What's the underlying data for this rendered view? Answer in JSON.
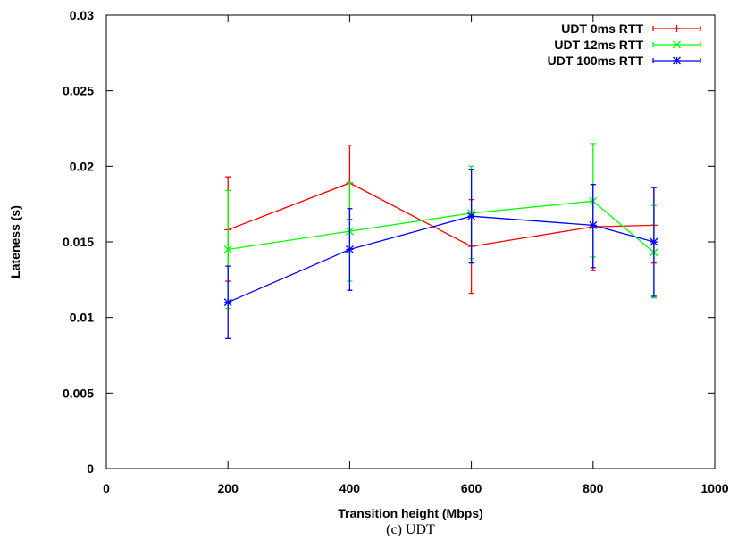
{
  "chart_data": {
    "type": "line",
    "xlabel": "Transition height (Mbps)",
    "ylabel": "Lateness (s)",
    "caption": "(c)  UDT",
    "xlim": [
      0,
      1000
    ],
    "ylim": [
      0,
      0.03
    ],
    "xticks": [
      0,
      200,
      400,
      600,
      800,
      1000
    ],
    "yticks": [
      0,
      0.005,
      0.01,
      0.015,
      0.02,
      0.025,
      0.03
    ],
    "xtick_labels": [
      "0",
      "200",
      "400",
      "600",
      "800",
      "1000"
    ],
    "ytick_labels": [
      "0",
      "0.005",
      "0.01",
      "0.015",
      "0.02",
      "0.025",
      "0.03"
    ],
    "legend_position": "top-right",
    "grid": false,
    "series": [
      {
        "name": "UDT 0ms RTT",
        "color": "#ff0000",
        "marker": "plus",
        "x": [
          200,
          400,
          600,
          800,
          900
        ],
        "y": [
          0.0158,
          0.0189,
          0.0147,
          0.016,
          0.0161
        ],
        "err_low": [
          0.0124,
          0.0165,
          0.0116,
          0.0131,
          0.0136
        ],
        "err_high": [
          0.0193,
          0.0214,
          0.0178,
          0.0188,
          0.0186
        ]
      },
      {
        "name": "UDT 12ms RTT",
        "color": "#00ff00",
        "marker": "cross",
        "x": [
          200,
          400,
          600,
          800,
          900
        ],
        "y": [
          0.0145,
          0.0157,
          0.0169,
          0.0177,
          0.0143
        ],
        "err_low": [
          0.0106,
          0.0124,
          0.0139,
          0.014,
          0.0113
        ],
        "err_high": [
          0.0184,
          0.0189,
          0.02,
          0.0215,
          0.0174
        ]
      },
      {
        "name": "UDT 100ms RTT",
        "color": "#0000ff",
        "marker": "star",
        "x": [
          200,
          400,
          600,
          800,
          900
        ],
        "y": [
          0.011,
          0.0145,
          0.0167,
          0.0161,
          0.015
        ],
        "err_low": [
          0.0086,
          0.0118,
          0.0136,
          0.0133,
          0.0114
        ],
        "err_high": [
          0.0134,
          0.0172,
          0.0198,
          0.0188,
          0.0186
        ]
      }
    ]
  }
}
